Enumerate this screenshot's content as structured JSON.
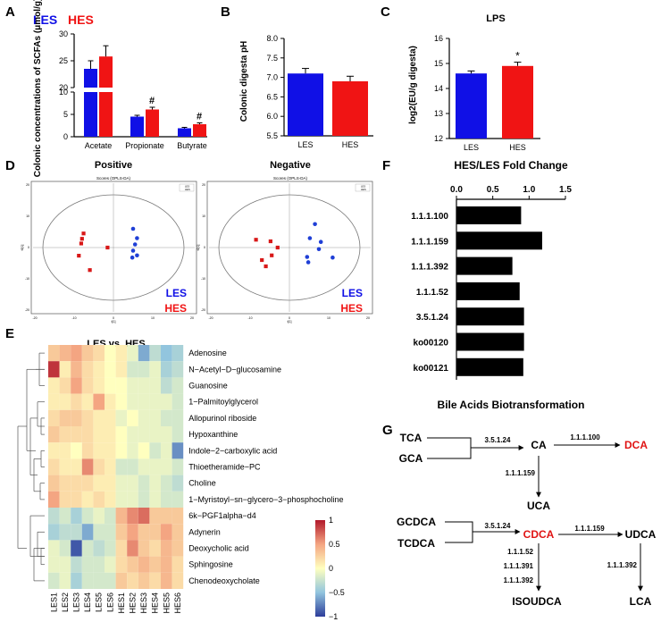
{
  "colors": {
    "les": "#1010e6",
    "hes": "#f01414",
    "bar": "#000000"
  },
  "panel_labels": {
    "a": "A",
    "b": "B",
    "c": "C",
    "d": "D",
    "e": "E",
    "f": "F",
    "g": "G"
  },
  "chart_data": [
    {
      "id": "A",
      "type": "bar",
      "title": "",
      "ylabel": "Colonic concentrations of SCFAs (μmol/g)",
      "categories": [
        "Acetate",
        "Propionate",
        "Butyrate"
      ],
      "series": [
        {
          "name": "LES",
          "values": [
            23.5,
            4.5,
            1.9
          ],
          "err": [
            1.5,
            0.3,
            0.2
          ]
        },
        {
          "name": "HES",
          "values": [
            25.8,
            6.1,
            2.8
          ],
          "err": [
            2.0,
            0.5,
            0.3
          ]
        }
      ],
      "yticks_lower": [
        "0",
        "5",
        "10"
      ],
      "yticks_upper": [
        "20",
        "25",
        "30"
      ],
      "broken_axis": true,
      "annotations": [
        "#",
        "#"
      ],
      "legend": [
        "LES",
        "HES"
      ]
    },
    {
      "id": "B",
      "type": "bar",
      "ylabel": "Colonic digesta pH",
      "categories": [
        "LES",
        "HES"
      ],
      "values": [
        7.1,
        6.9
      ],
      "err": [
        0.13,
        0.13
      ],
      "ylim": [
        5.5,
        8.0
      ],
      "yticks": [
        "5.5",
        "6.0",
        "6.5",
        "7.0",
        "7.5",
        "8.0"
      ]
    },
    {
      "id": "C",
      "type": "bar",
      "title": "LPS",
      "ylabel": "log2(EU/g digesta)",
      "categories": [
        "LES",
        "HES"
      ],
      "values": [
        14.6,
        14.9
      ],
      "err": [
        0.1,
        0.15
      ],
      "ylim": [
        12,
        16
      ],
      "yticks": [
        "12",
        "13",
        "14",
        "15",
        "16"
      ],
      "annotations": [
        "*"
      ]
    },
    {
      "id": "D1",
      "type": "scatter",
      "title": "Positive",
      "plot_title": "Scores (OPLS-DA)",
      "xticks": [
        "-20",
        "-10",
        "0",
        "10",
        "20"
      ],
      "yticks": [
        "20",
        "10",
        "0",
        "-10",
        "-20"
      ],
      "xlabel": "t[1]",
      "ylabel": "t0[1]",
      "series": [
        {
          "name": "LES",
          "points": [
            [
              5,
              6
            ],
            [
              6,
              3
            ],
            [
              5.5,
              1
            ],
            [
              5,
              -1
            ],
            [
              6,
              -2.5
            ],
            [
              4.8,
              -3.2
            ]
          ]
        },
        {
          "name": "HES",
          "points": [
            [
              -7.6,
              4.5
            ],
            [
              -8,
              2.8
            ],
            [
              -8.2,
              1.3
            ],
            [
              -1.5,
              0
            ],
            [
              -8.8,
              -2.6
            ],
            [
              -6,
              -7.2
            ]
          ]
        }
      ],
      "legend": [
        "LES",
        "HES"
      ],
      "legend_small": [
        "LES",
        "HES"
      ]
    },
    {
      "id": "D2",
      "type": "scatter",
      "title": "Negative",
      "plot_title": "Scores (OPLS-DA)",
      "xticks": [
        "-20",
        "-10",
        "0",
        "10",
        "20"
      ],
      "yticks": [
        "20",
        "10",
        "0",
        "-10",
        "-20"
      ],
      "xlabel": "t[1]",
      "ylabel": "t0[1]",
      "series": [
        {
          "name": "LES",
          "points": [
            [
              6.5,
              7.5
            ],
            [
              5.2,
              3
            ],
            [
              8,
              1.8
            ],
            [
              7.5,
              -0.5
            ],
            [
              4.5,
              -3
            ],
            [
              11,
              -3.2
            ],
            [
              4.8,
              -4.7
            ]
          ]
        },
        {
          "name": "HES",
          "points": [
            [
              -4.8,
              2
            ],
            [
              -8.5,
              2.5
            ],
            [
              -3,
              0
            ],
            [
              -4.5,
              -2.5
            ],
            [
              -7,
              -4
            ],
            [
              -6,
              -6
            ]
          ]
        }
      ],
      "legend": [
        "LES",
        "HES"
      ],
      "legend_small": [
        "LES",
        "HES"
      ]
    },
    {
      "id": "E",
      "type": "heatmap",
      "title": "LES vs. HES",
      "columns": [
        "LES1",
        "LES2",
        "LES3",
        "LES4",
        "LES5",
        "LES6",
        "HES1",
        "HES2",
        "HES3",
        "HES4",
        "HES5",
        "HES6"
      ],
      "rows": [
        "Adenosine",
        "N−Acetyl−D−glucosamine",
        "Guanosine",
        "1−Palmitoylglycerol",
        "Allopurinol riboside",
        "Hypoxanthine",
        "Indole−2−carboxylic acid",
        "Thioetheramide−PC",
        "Choline",
        "1−Myristoyl−sn−glycero−3−phosphocholine",
        "6k−PGF1alpha−d4",
        "Adynerin",
        "Deoxycholic acid",
        "Sphingosine",
        "Chenodeoxycholate"
      ],
      "values": [
        [
          0.3,
          0.4,
          0.5,
          0.3,
          0.2,
          0.0,
          0.1,
          -0.1,
          -0.6,
          -0.3,
          -0.5,
          -0.4
        ],
        [
          0.9,
          0.1,
          0.4,
          0.2,
          0.1,
          0.0,
          0.1,
          -0.2,
          -0.2,
          -0.1,
          -0.4,
          -0.3
        ],
        [
          0.1,
          0.2,
          0.5,
          0.2,
          0.1,
          0.0,
          0.0,
          -0.1,
          -0.1,
          -0.1,
          -0.3,
          -0.2
        ],
        [
          0.1,
          0.1,
          0.2,
          0.1,
          0.5,
          0.1,
          0.0,
          -0.1,
          -0.1,
          -0.1,
          -0.1,
          -0.2
        ],
        [
          0.2,
          0.3,
          0.3,
          0.2,
          0.1,
          0.1,
          -0.1,
          0.0,
          -0.1,
          -0.1,
          -0.2,
          -0.2
        ],
        [
          0.3,
          0.2,
          0.2,
          0.2,
          0.1,
          0.1,
          0.0,
          -0.1,
          -0.1,
          -0.1,
          -0.1,
          -0.2
        ],
        [
          0.1,
          0.1,
          0.0,
          0.2,
          0.1,
          0.1,
          0.0,
          -0.1,
          0.0,
          -0.2,
          -0.1,
          -0.7
        ],
        [
          0.2,
          0.1,
          0.1,
          0.6,
          0.2,
          0.1,
          -0.2,
          -0.2,
          -0.1,
          -0.1,
          -0.1,
          -0.2
        ],
        [
          0.3,
          0.2,
          0.2,
          0.2,
          0.1,
          0.1,
          -0.1,
          -0.1,
          -0.2,
          -0.1,
          -0.2,
          -0.3
        ],
        [
          0.5,
          0.2,
          0.2,
          0.1,
          0.2,
          0.1,
          -0.1,
          -0.1,
          -0.2,
          -0.1,
          -0.2,
          -0.2
        ],
        [
          -0.3,
          -0.2,
          -0.4,
          -0.2,
          -0.1,
          -0.2,
          0.4,
          0.6,
          0.7,
          0.3,
          0.3,
          0.3
        ],
        [
          -0.4,
          -0.3,
          -0.3,
          -0.6,
          -0.2,
          -0.2,
          0.3,
          0.5,
          0.3,
          0.3,
          0.5,
          0.3
        ],
        [
          -0.1,
          -0.2,
          -0.9,
          -0.2,
          -0.3,
          -0.2,
          0.2,
          0.6,
          0.3,
          0.2,
          0.4,
          0.3
        ],
        [
          -0.1,
          -0.1,
          -0.3,
          -0.2,
          -0.2,
          -0.1,
          0.2,
          0.3,
          0.4,
          0.3,
          0.4,
          0.2
        ],
        [
          -0.2,
          -0.1,
          -0.4,
          -0.2,
          -0.2,
          -0.2,
          0.3,
          0.2,
          0.3,
          0.2,
          0.4,
          0.2
        ]
      ],
      "colorbar_ticks": [
        "1",
        "0.5",
        "0",
        "−0.5",
        "−1"
      ]
    },
    {
      "id": "F",
      "type": "bar",
      "orientation": "horizontal",
      "title": "HES/LES Fold Change",
      "categories": [
        "1.1.1.100",
        "1.1.1.159",
        "1.1.1.392",
        "1.1.1.52",
        "3.5.1.24",
        "ko00120",
        "ko00121"
      ],
      "values": [
        0.89,
        1.18,
        0.77,
        0.87,
        0.93,
        0.93,
        0.92
      ],
      "xlim": [
        0,
        1.5
      ],
      "xticks": [
        "0.0",
        "0.5",
        "1.0",
        "1.5"
      ]
    }
  ],
  "panel_g": {
    "title": "Bile Acids Biotransformation",
    "nodes": {
      "tca": "TCA",
      "gca": "GCA",
      "ca": "CA",
      "dca": "DCA",
      "uca": "UCA",
      "gcdca": "GCDCA",
      "tcdca": "TCDCA",
      "cdca": "CDCA",
      "udca": "UDCA",
      "isoudca": "ISOUDCA",
      "lca": "LCA"
    },
    "enzymes": {
      "e1": "3.5.1.24",
      "e2": "1.1.1.100",
      "e3": "1.1.1.159",
      "e4": "3.5.1.24",
      "e5": "1.1.1.159",
      "e6a": "1.1.1.52",
      "e6b": "1.1.1.391",
      "e6c": "1.1.1.392",
      "e7": "1.1.1.392"
    }
  }
}
